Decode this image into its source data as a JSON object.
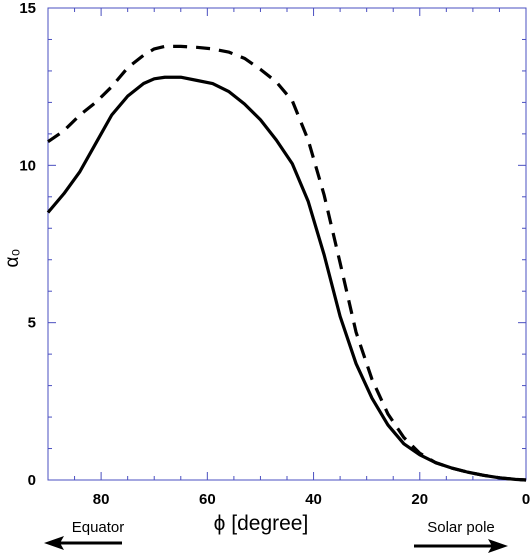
{
  "chart_data": {
    "type": "line",
    "xlabel": "ϕ [degree]",
    "ylabel": "α₀",
    "xlim": [
      90,
      0
    ],
    "ylim": [
      0,
      15
    ],
    "x_reversed": true,
    "x_ticks": [
      80,
      60,
      40,
      20,
      0
    ],
    "x_tick_labels": [
      "80",
      "60",
      "40",
      "20",
      "0"
    ],
    "y_ticks": [
      0,
      5,
      10,
      15
    ],
    "y_tick_labels": [
      "0",
      "5",
      "10",
      "15"
    ],
    "grid": false,
    "legend": "none",
    "series": [
      {
        "style": "solid",
        "color": "#000000",
        "x": [
          90,
          87,
          84,
          81,
          78,
          75,
          72,
          70,
          68,
          65,
          62,
          59,
          56,
          53,
          50,
          47,
          44,
          41,
          38,
          35,
          32,
          29,
          26,
          23,
          20,
          17,
          14,
          11,
          8,
          5,
          2,
          0
        ],
        "y": [
          8.5,
          9.1,
          9.8,
          10.7,
          11.6,
          12.2,
          12.6,
          12.75,
          12.8,
          12.8,
          12.7,
          12.6,
          12.35,
          11.95,
          11.45,
          10.8,
          10.05,
          8.85,
          7.15,
          5.2,
          3.7,
          2.6,
          1.75,
          1.15,
          0.8,
          0.55,
          0.38,
          0.25,
          0.15,
          0.07,
          0.02,
          0.0
        ]
      },
      {
        "style": "dashed",
        "color": "#000000",
        "x": [
          90,
          87,
          84,
          81,
          78,
          75,
          72,
          70,
          68,
          65,
          62,
          59,
          56,
          53,
          50,
          47,
          44,
          41,
          38,
          35,
          32,
          29,
          26,
          23,
          20,
          17,
          14,
          11,
          8,
          5,
          2,
          0
        ],
        "y": [
          10.75,
          11.1,
          11.6,
          12.0,
          12.5,
          13.1,
          13.5,
          13.7,
          13.78,
          13.78,
          13.75,
          13.7,
          13.6,
          13.4,
          13.05,
          12.65,
          12.05,
          10.8,
          9.05,
          6.9,
          4.7,
          3.2,
          2.1,
          1.35,
          0.85,
          0.55,
          0.38,
          0.25,
          0.15,
          0.07,
          0.02,
          0.0
        ]
      }
    ],
    "annotations": [
      {
        "text": "Equator",
        "direction": "left"
      },
      {
        "text": "Solar pole",
        "direction": "right"
      }
    ]
  }
}
